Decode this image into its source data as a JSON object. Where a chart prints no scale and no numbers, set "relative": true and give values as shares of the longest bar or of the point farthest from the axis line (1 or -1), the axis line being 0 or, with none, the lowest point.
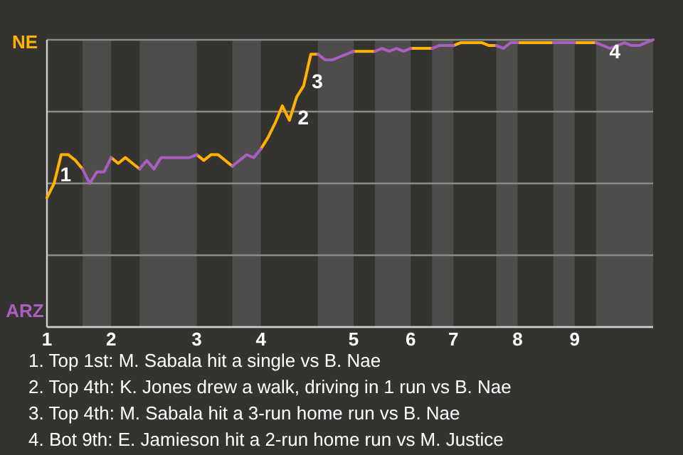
{
  "chart_data": {
    "type": "line",
    "categories": [
      "1",
      null,
      null,
      null,
      null,
      null,
      null,
      null,
      null,
      "2",
      null,
      null,
      null,
      null,
      null,
      null,
      null,
      null,
      null,
      null,
      null,
      "3",
      null,
      null,
      null,
      null,
      null,
      null,
      null,
      null,
      "4",
      null,
      null,
      null,
      null,
      null,
      null,
      null,
      null,
      null,
      null,
      null,
      null,
      "5",
      null,
      null,
      null,
      null,
      null,
      null,
      null,
      "6",
      null,
      null,
      null,
      null,
      null,
      "7",
      null,
      null,
      null,
      null,
      null,
      null,
      null,
      null,
      "8",
      null,
      null,
      null,
      null,
      null,
      null,
      null,
      "9",
      null,
      null,
      null,
      null,
      null,
      null,
      null,
      null,
      null,
      null,
      null
    ],
    "relative": true,
    "series": [
      {
        "name": "NE",
        "color": "#ffb300",
        "values": [
          0.45,
          0.5,
          0.6,
          0.6,
          0.58,
          0.55,
          null,
          null,
          null,
          0.59,
          0.57,
          0.59,
          0.57,
          0.55,
          null,
          null,
          null,
          null,
          null,
          null,
          null,
          0.6,
          0.58,
          0.6,
          0.6,
          0.58,
          0.56,
          null,
          null,
          null,
          0.62,
          0.66,
          0.71,
          0.77,
          0.72,
          0.8,
          0.84,
          0.95,
          0.95,
          null,
          null,
          null,
          null,
          0.96,
          0.96,
          0.96,
          0.96,
          null,
          null,
          null,
          null,
          0.97,
          0.97,
          0.97,
          0.97,
          null,
          null,
          0.98,
          0.99,
          0.99,
          0.99,
          0.99,
          0.98,
          0.98,
          null,
          null,
          0.99,
          0.99,
          0.99,
          0.99,
          0.99,
          0.99,
          null,
          null,
          0.99,
          0.99,
          0.99,
          0.99,
          null,
          null,
          null,
          null,
          null,
          null,
          null,
          null
        ]
      },
      {
        "name": "ARZ",
        "color": "#a95fbf",
        "values": [
          null,
          null,
          null,
          null,
          null,
          0.55,
          0.5,
          0.54,
          0.54,
          0.59,
          null,
          null,
          null,
          0.55,
          0.58,
          0.55,
          0.59,
          0.59,
          0.59,
          0.59,
          0.59,
          0.6,
          null,
          null,
          null,
          null,
          0.56,
          0.58,
          0.6,
          0.59,
          0.62,
          null,
          null,
          null,
          null,
          null,
          null,
          null,
          0.95,
          0.93,
          0.93,
          0.94,
          0.95,
          0.96,
          null,
          null,
          0.96,
          0.97,
          0.96,
          0.97,
          0.96,
          0.97,
          null,
          null,
          0.97,
          0.98,
          0.98,
          0.98,
          null,
          null,
          null,
          null,
          null,
          0.98,
          0.97,
          0.99,
          0.99,
          null,
          null,
          null,
          null,
          0.99,
          0.99,
          0.99,
          0.99,
          null,
          null,
          0.99,
          0.98,
          0.97,
          0.98,
          0.99,
          0.98,
          0.98,
          0.99,
          1
        ]
      }
    ],
    "grid": "y",
    "legend": "left",
    "marker": "none",
    "line_style": "solid",
    "annotations": [
      "1",
      "2",
      "3",
      "4",
      "1. Top 1st: M. Sabala hit a single vs B. Nae",
      "2. Top 4th: K. Jones drew a walk, driving in 1 run vs B. Nae",
      "3. Top 4th: M. Sabala hit a 3-run home run vs B. Nae",
      "4. Bot 9th: E. Jamieson hit a 2-run home run vs M. Justice"
    ]
  }
}
